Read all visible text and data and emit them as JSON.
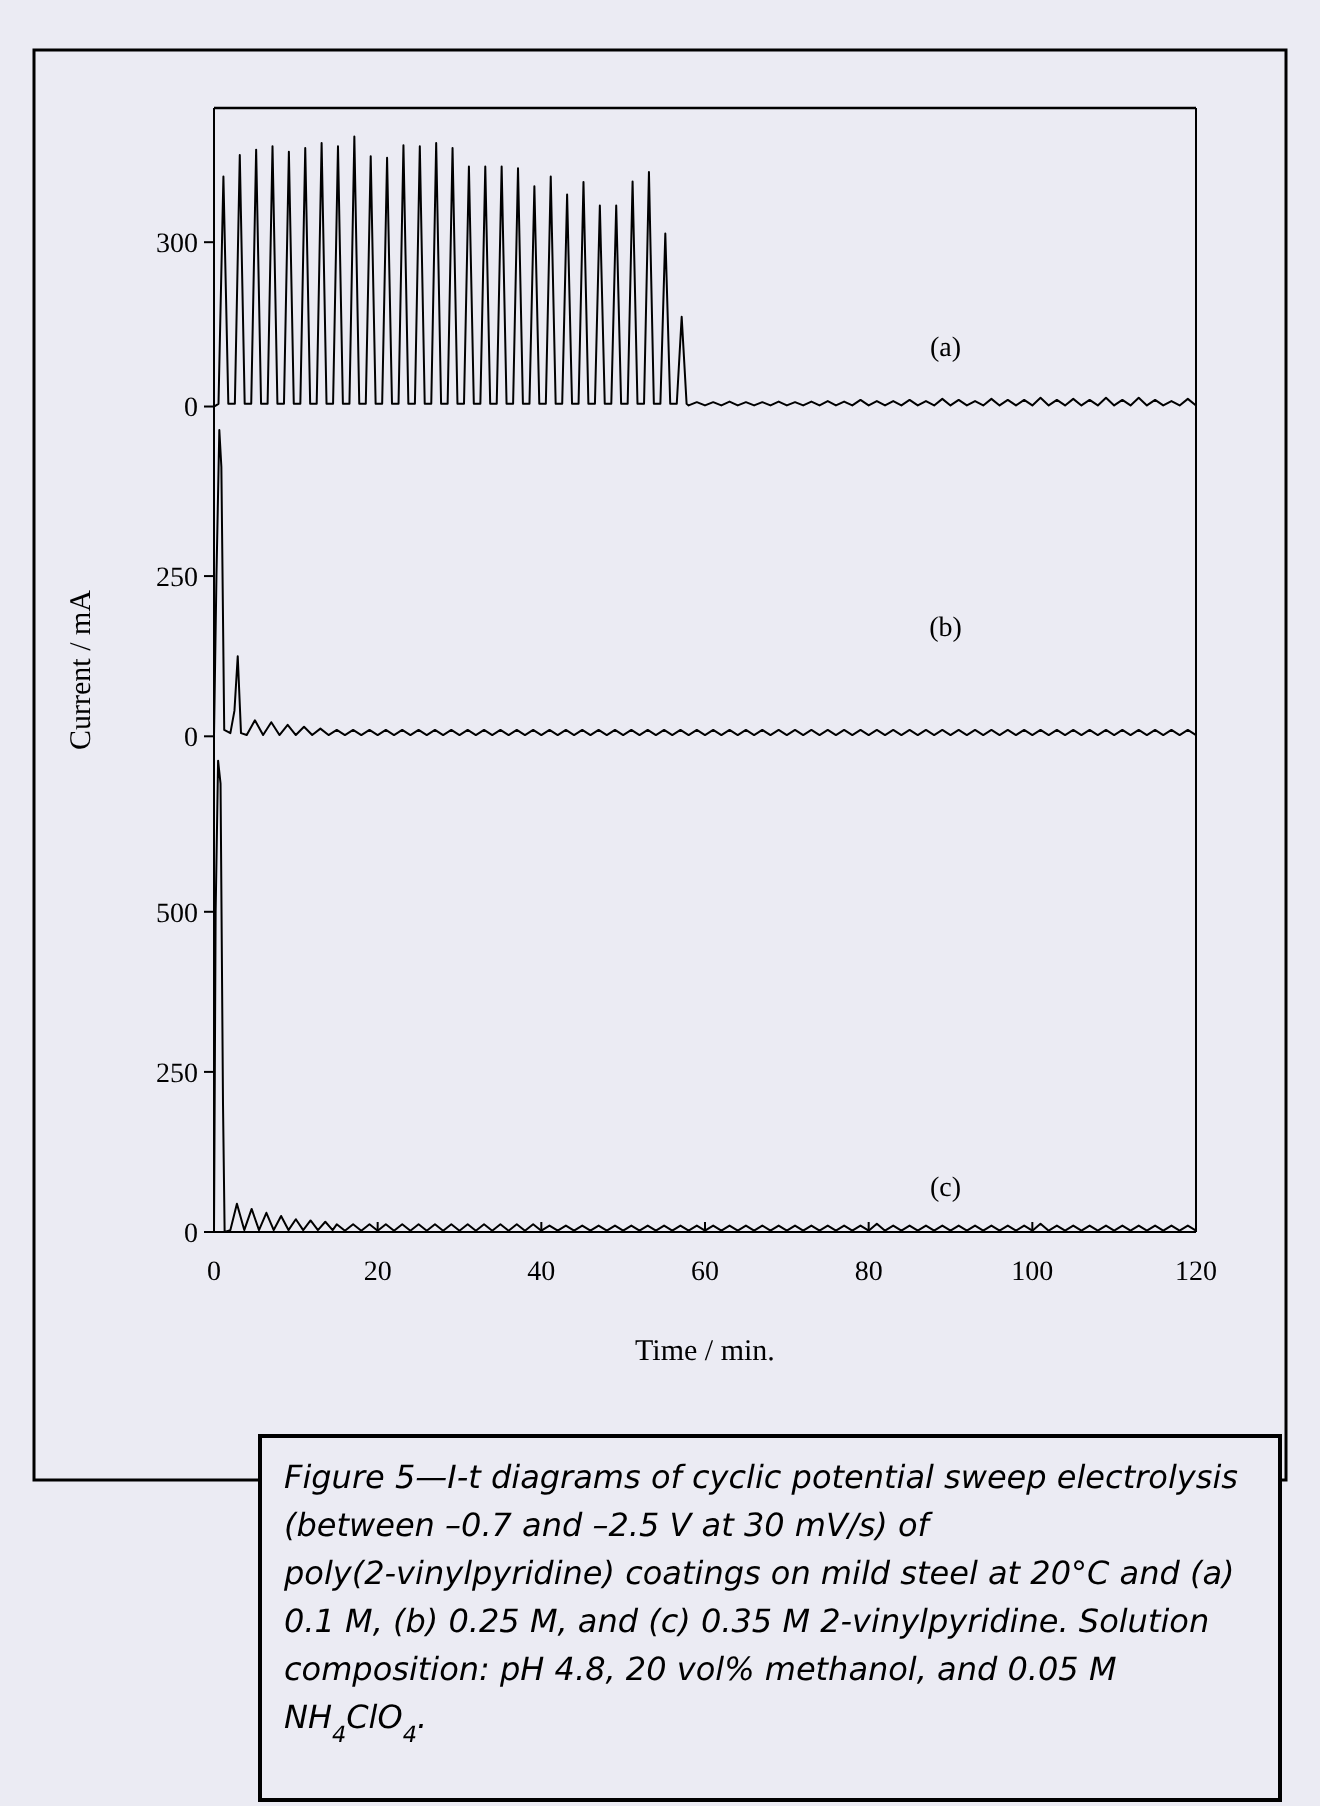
{
  "chart_data": [
    {
      "type": "line",
      "xlim": [
        0,
        120
      ],
      "ylim": [
        -10,
        545
      ],
      "yticks": [
        0,
        300
      ],
      "tick_labels": "y",
      "annotations": [
        "(a)"
      ],
      "series": [
        {
          "color": "#000000",
          "x": [
            0,
            0.55,
            1.15,
            1.75,
            2.55,
            3.15,
            3.75,
            4.55,
            5.15,
            5.75,
            6.55,
            7.15,
            7.75,
            8.55,
            9.15,
            9.75,
            10.55,
            11.15,
            11.75,
            12.55,
            13.15,
            13.75,
            14.55,
            15.15,
            15.75,
            16.55,
            17.15,
            17.75,
            18.55,
            19.15,
            19.75,
            20.55,
            21.15,
            21.75,
            22.55,
            23.15,
            23.75,
            24.55,
            25.15,
            25.75,
            26.55,
            27.15,
            27.75,
            28.55,
            29.15,
            29.75,
            30.55,
            31.15,
            31.75,
            32.55,
            33.15,
            33.75,
            34.55,
            35.15,
            35.75,
            36.55,
            37.15,
            37.75,
            38.55,
            39.15,
            39.75,
            40.55,
            41.15,
            41.75,
            42.55,
            43.15,
            43.75,
            44.55,
            45.15,
            45.75,
            46.55,
            47.15,
            47.75,
            48.55,
            49.15,
            49.75,
            50.55,
            51.15,
            51.75,
            52.55,
            53.15,
            53.75,
            54.55,
            55.15,
            55.75,
            56.55,
            57.15,
            57.75,
            58,
            59,
            60,
            61,
            62,
            63,
            64,
            65,
            66,
            67,
            68,
            69,
            70,
            71,
            72,
            73,
            74,
            75,
            76,
            77,
            78,
            79,
            80,
            81,
            82,
            83,
            84,
            85,
            86,
            87,
            88,
            89,
            90,
            91,
            92,
            93,
            94,
            95,
            96,
            97,
            98,
            99,
            100,
            101,
            102,
            103,
            104,
            105,
            106,
            107,
            108,
            109,
            110,
            111,
            112,
            113,
            114,
            115,
            116,
            117,
            118,
            119,
            120
          ],
          "values": [
            0,
            5,
            420,
            5,
            5,
            459,
            5,
            5,
            469,
            5,
            5,
            475,
            5,
            5,
            465,
            5,
            5,
            472,
            5,
            5,
            481,
            5,
            5,
            475,
            5,
            5,
            493,
            5,
            5,
            457,
            5,
            5,
            454,
            5,
            5,
            477,
            5,
            5,
            475,
            5,
            5,
            481,
            5,
            5,
            472,
            5,
            5,
            438,
            5,
            5,
            438,
            5,
            5,
            438,
            5,
            5,
            435,
            5,
            5,
            402,
            5,
            5,
            420,
            5,
            5,
            387,
            5,
            5,
            410,
            5,
            5,
            367,
            5,
            5,
            367,
            5,
            5,
            411,
            5,
            5,
            428,
            5,
            5,
            316,
            5,
            5,
            164,
            5,
            2,
            8,
            2,
            8,
            2,
            9,
            2,
            8,
            2,
            8,
            2,
            9,
            2,
            8,
            2,
            9,
            2,
            10,
            2,
            9,
            2,
            12,
            2,
            10,
            2,
            10,
            2,
            12,
            2,
            10,
            2,
            14,
            2,
            12,
            2,
            10,
            2,
            14,
            2,
            12,
            2,
            12,
            2,
            16,
            2,
            12,
            2,
            14,
            2,
            12,
            2,
            16,
            2,
            12,
            2,
            16,
            2,
            12,
            2,
            10,
            2,
            14,
            2
          ]
        }
      ]
    },
    {
      "type": "line",
      "xlim": [
        0,
        120
      ],
      "ylim": [
        -12,
        506
      ],
      "yticks": [
        0,
        250
      ],
      "tick_labels": "y",
      "ylabel": "Current / mA",
      "annotations": [
        "(b)"
      ],
      "series": [
        {
          "color": "#000000",
          "x": [
            0,
            0.3,
            0.65,
            0.9,
            1.25,
            2,
            2.5,
            2.9,
            3.3,
            4,
            5,
            6,
            7,
            8,
            9,
            10,
            11,
            12,
            13,
            14,
            15,
            16,
            17,
            18,
            19,
            20,
            21,
            22,
            23,
            24,
            25,
            26,
            27,
            28,
            29,
            30,
            31,
            32,
            33,
            34,
            35,
            36,
            37,
            38,
            39,
            40,
            41,
            42,
            43,
            44,
            45,
            46,
            47,
            48,
            49,
            50,
            51,
            52,
            53,
            54,
            55,
            56,
            57,
            58,
            59,
            60,
            61,
            62,
            63,
            64,
            65,
            66,
            67,
            68,
            69,
            70,
            71,
            72,
            73,
            74,
            75,
            76,
            77,
            78,
            79,
            80,
            81,
            82,
            83,
            84,
            85,
            86,
            87,
            88,
            89,
            90,
            91,
            92,
            93,
            94,
            95,
            96,
            97,
            98,
            99,
            100,
            101,
            102,
            103,
            104,
            105,
            106,
            107,
            108,
            109,
            110,
            111,
            112,
            113,
            114,
            115,
            116,
            117,
            118,
            119,
            120
          ],
          "values": [
            0,
            250,
            478,
            420,
            10,
            5,
            40,
            125,
            5,
            2,
            25,
            2,
            22,
            2,
            18,
            2,
            15,
            2,
            12,
            2,
            10,
            2,
            10,
            2,
            10,
            2,
            10,
            2,
            10,
            2,
            10,
            2,
            10,
            2,
            10,
            2,
            10,
            2,
            10,
            2,
            10,
            2,
            10,
            2,
            10,
            2,
            10,
            2,
            10,
            2,
            10,
            2,
            10,
            2,
            10,
            2,
            10,
            2,
            10,
            2,
            10,
            2,
            10,
            2,
            10,
            2,
            10,
            2,
            10,
            2,
            10,
            2,
            10,
            2,
            10,
            2,
            10,
            2,
            10,
            2,
            10,
            2,
            10,
            2,
            10,
            2,
            10,
            2,
            10,
            2,
            10,
            2,
            10,
            2,
            10,
            2,
            10,
            2,
            10,
            2,
            10,
            2,
            10,
            2,
            10,
            2,
            10,
            2,
            10,
            2,
            10,
            2,
            10,
            2,
            10,
            2,
            10,
            2,
            10,
            2,
            10,
            2,
            10,
            2,
            10,
            2
          ]
        }
      ]
    },
    {
      "type": "line",
      "xlim": [
        0,
        120
      ],
      "ylim": [
        0,
        762
      ],
      "yticks": [
        0,
        250,
        500
      ],
      "xticks": [
        0,
        20,
        40,
        60,
        80,
        100,
        120
      ],
      "xlabel": "Time / min.",
      "annotations": [
        "(c)",
        "Figure 5—I-t diagrams of cyclic potential sweep electrolysis (between –0.7 and –2.5 V at 30 mV/s) of poly(2-vinylpyridine) coatings on mild steel at 20°C and (a) 0.1 M, (b) 0.25 M, and (c) 0.35 M 2-vinylpyridine. Solution composition: pH 4.8, 20 vol% methanol, and 0.05 M NH$_{4}$ClO$_{4}$."
      ],
      "series": [
        {
          "color": "#000000",
          "x": [
            0,
            0.2,
            0.5,
            0.8,
            1.1,
            1.3,
            2,
            2.8,
            3.7,
            4.6,
            5.5,
            6.4,
            7.3,
            8.2,
            9.1,
            10,
            10.9,
            11.8,
            12.7,
            13.6,
            14.5,
            15,
            16,
            17,
            18,
            19,
            20,
            21,
            22,
            23,
            24,
            25,
            26,
            27,
            28,
            29,
            30,
            31,
            32,
            33,
            34,
            35,
            36,
            37,
            38,
            39,
            40,
            41,
            42,
            43,
            44,
            45,
            46,
            47,
            48,
            49,
            50,
            51,
            52,
            53,
            54,
            55,
            56,
            57,
            58,
            59,
            60,
            61,
            62,
            63,
            64,
            65,
            66,
            67,
            68,
            69,
            70,
            71,
            72,
            73,
            74,
            75,
            76,
            77,
            78,
            79,
            80,
            81,
            82,
            83,
            84,
            85,
            86,
            87,
            88,
            89,
            90,
            91,
            92,
            93,
            94,
            95,
            96,
            97,
            98,
            99,
            100,
            101,
            102,
            103,
            104,
            105,
            106,
            107,
            108,
            109,
            110,
            111,
            112,
            113,
            114,
            115,
            116,
            117,
            118,
            119,
            120
          ],
          "values": [
            0,
            500,
            736,
            700,
            200,
            0,
            3,
            44,
            3,
            36,
            3,
            30,
            3,
            25,
            3,
            20,
            3,
            18,
            3,
            16,
            3,
            12,
            2,
            12,
            2,
            12,
            2,
            12,
            2,
            12,
            2,
            12,
            2,
            12,
            2,
            12,
            2,
            12,
            2,
            12,
            2,
            12,
            2,
            12,
            2,
            12,
            2,
            10,
            2,
            10,
            2,
            10,
            2,
            10,
            2,
            10,
            2,
            10,
            2,
            10,
            2,
            10,
            2,
            10,
            2,
            10,
            2,
            10,
            2,
            10,
            2,
            10,
            2,
            10,
            2,
            10,
            2,
            10,
            2,
            10,
            2,
            10,
            2,
            10,
            2,
            10,
            2,
            13,
            2,
            10,
            2,
            10,
            2,
            10,
            2,
            10,
            2,
            10,
            2,
            10,
            2,
            10,
            2,
            10,
            2,
            10,
            2,
            13,
            2,
            10,
            2,
            10,
            2,
            10,
            2,
            10,
            2,
            10,
            2,
            10,
            2,
            10,
            2,
            10,
            2,
            10,
            2
          ]
        }
      ]
    }
  ]
}
